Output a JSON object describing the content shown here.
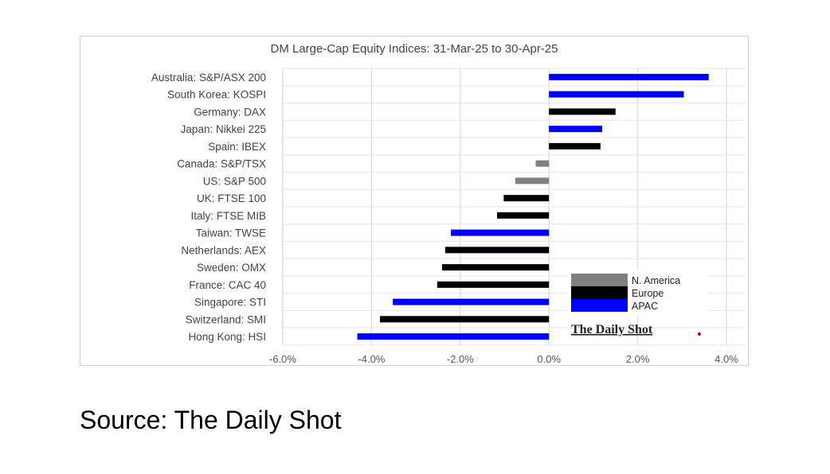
{
  "chart_data": {
    "type": "bar",
    "orientation": "horizontal",
    "title": "DM Large-Cap Equity Indices: 31-Mar-25 to 30-Apr-25",
    "xlabel": "",
    "ylabel": "",
    "xlim": [
      -6,
      4
    ],
    "xticks": [
      "-6.0%",
      "-4.0%",
      "-2.0%",
      "0.0%",
      "2.0%",
      "4.0%"
    ],
    "xtick_values": [
      -6,
      -4,
      -2,
      0,
      2,
      4
    ],
    "grid": true,
    "legend_position": "bottom-right",
    "legend": [
      {
        "name": "N. America",
        "color": "#808080"
      },
      {
        "name": "Europe",
        "color": "#000000"
      },
      {
        "name": "APAC",
        "color": "#0000ff"
      }
    ],
    "categories": [
      "Australia: S&P/ASX 200",
      "South Korea: KOSPI",
      "Germany: DAX",
      "Japan: Nikkei 225",
      "Spain: IBEX",
      "Canada: S&P/TSX",
      "US: S&P 500",
      "UK: FTSE 100",
      "Italy: FTSE MIB",
      "Taiwan: TWSE",
      "Netherlands: AEX",
      "Sweden: OMX",
      "France: CAC 40",
      "Singapore: STI",
      "Switzerland: SMI",
      "Hong Kong: HSI"
    ],
    "values": [
      3.6,
      3.04,
      1.5,
      1.2,
      1.16,
      -0.3,
      -0.76,
      -1.02,
      -1.17,
      -2.21,
      -2.34,
      -2.41,
      -2.52,
      -3.52,
      -3.81,
      -4.32
    ],
    "regions": [
      "APAC",
      "APAC",
      "Europe",
      "APAC",
      "Europe",
      "N. America",
      "N. America",
      "Europe",
      "Europe",
      "APAC",
      "Europe",
      "Europe",
      "Europe",
      "APAC",
      "Europe",
      "APAC"
    ],
    "unit": "%"
  },
  "logo": "The Daily Shot",
  "source": "Source: The Daily Shot"
}
